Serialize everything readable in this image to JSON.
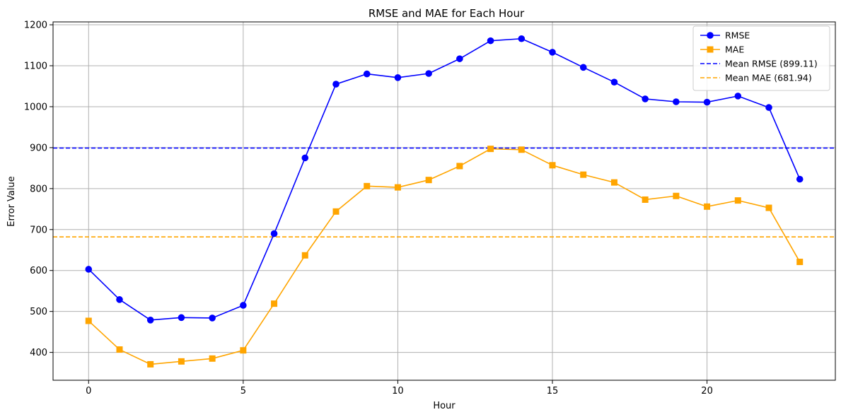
{
  "chart_data": {
    "type": "line",
    "title": "RMSE and MAE for Each Hour",
    "xlabel": "Hour",
    "ylabel": "Error Value",
    "xlim": [
      -1.15,
      24.15
    ],
    "ylim": [
      332,
      1207
    ],
    "xticks": [
      0,
      5,
      10,
      15,
      20
    ],
    "yticks": [
      400,
      500,
      600,
      700,
      800,
      900,
      1000,
      1100,
      1200
    ],
    "grid": true,
    "legend_position": "top-right",
    "x": [
      0,
      1,
      2,
      3,
      4,
      5,
      6,
      7,
      8,
      9,
      10,
      11,
      12,
      13,
      14,
      15,
      16,
      17,
      18,
      19,
      20,
      21,
      22,
      23
    ],
    "series": [
      {
        "name": "RMSE",
        "color": "#0000ff",
        "marker": "circle",
        "values": [
          603,
          529,
          479,
          485,
          484,
          515,
          690,
          875,
          1055,
          1080,
          1071,
          1081,
          1117,
          1161,
          1166,
          1133,
          1096,
          1060,
          1019,
          1012,
          1011,
          1026,
          998,
          823
        ]
      },
      {
        "name": "MAE",
        "color": "#ffa500",
        "marker": "square",
        "values": [
          477,
          407,
          371,
          378,
          385,
          405,
          519,
          637,
          744,
          806,
          803,
          821,
          855,
          897,
          895,
          857,
          834,
          815,
          773,
          782,
          756,
          771,
          753,
          621
        ]
      }
    ],
    "reference_lines": [
      {
        "name": "Mean RMSE (899.11)",
        "value": 899.11,
        "color": "#0000ff",
        "style": "dashed"
      },
      {
        "name": "Mean MAE (681.94)",
        "value": 681.94,
        "color": "#ffa500",
        "style": "dashed"
      }
    ]
  }
}
